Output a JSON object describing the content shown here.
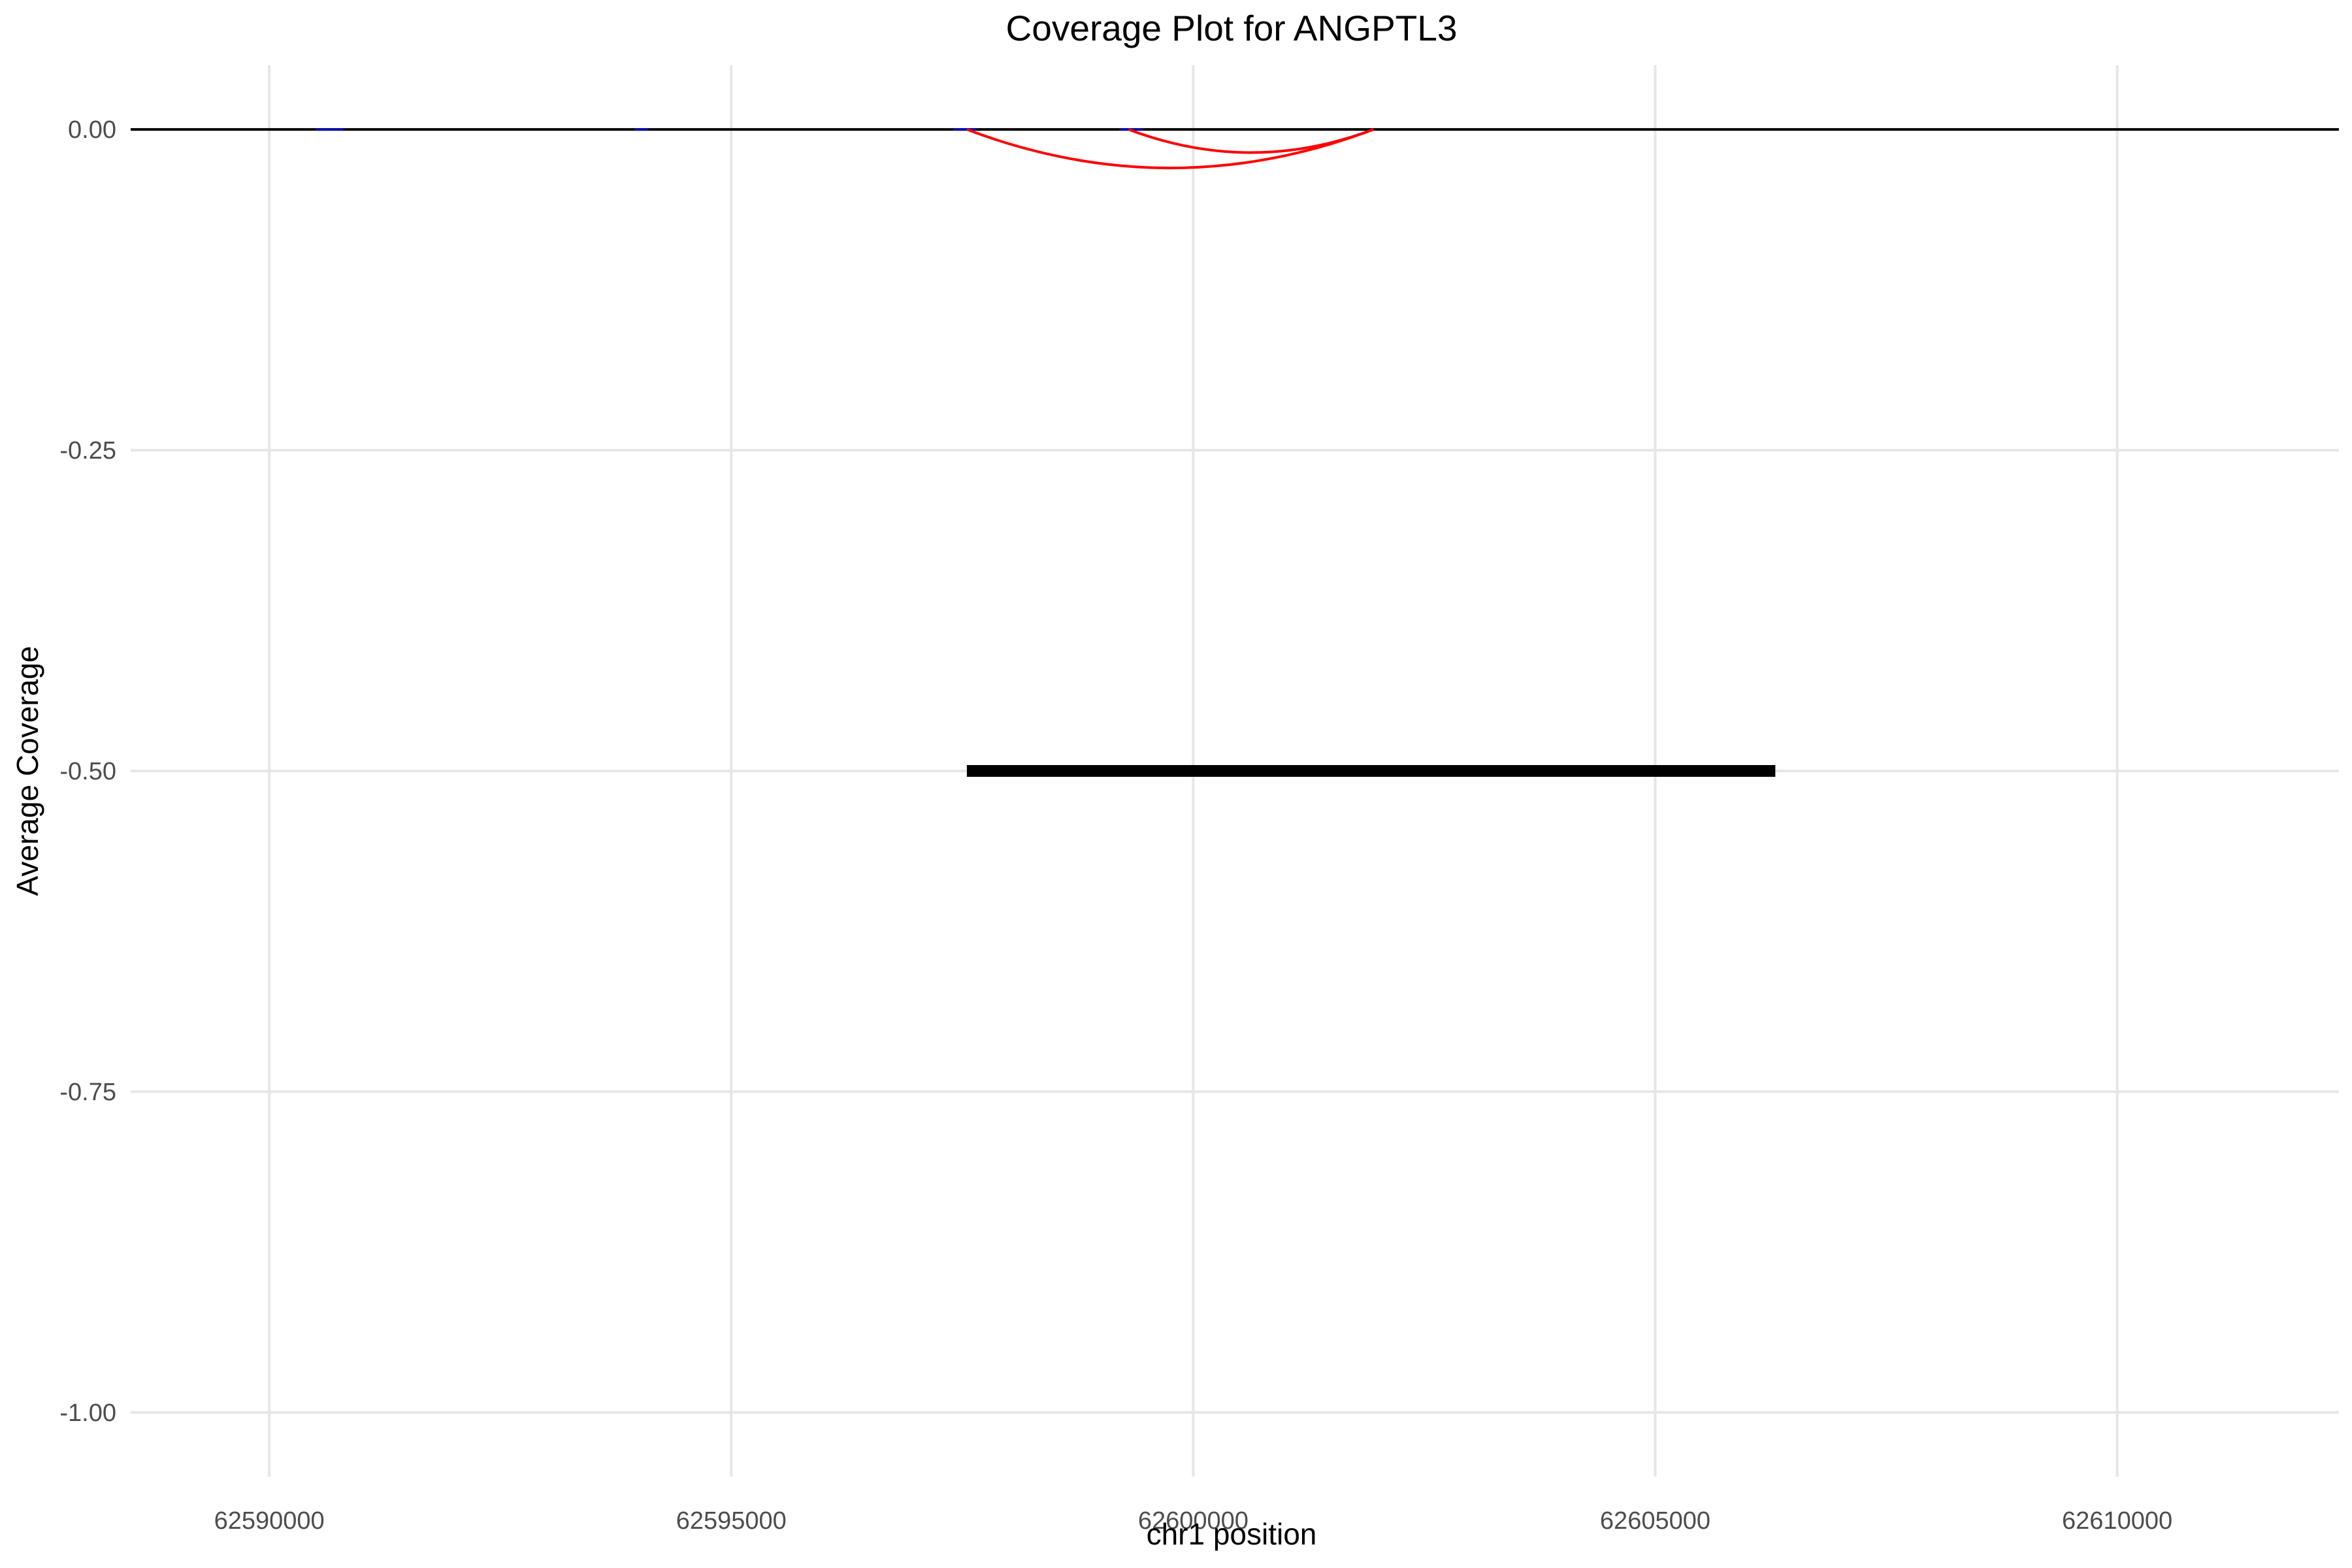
{
  "chart_data": {
    "type": "line",
    "title": "Coverage Plot for ANGPTL3",
    "xlabel": "chr1 position",
    "ylabel": "Average Coverage",
    "xlim": [
      62588500,
      62612400
    ],
    "ylim": [
      -1.05,
      0.05
    ],
    "x_ticks": [
      62590000,
      62595000,
      62600000,
      62605000,
      62610000
    ],
    "x_tick_labels": [
      "62590000",
      "62595000",
      "62600000",
      "62605000",
      "62610000"
    ],
    "y_ticks": [
      0.0,
      -0.25,
      -0.5,
      -0.75,
      -1.0
    ],
    "y_tick_labels": [
      "0.00",
      "-0.25",
      "-0.50",
      "-0.75",
      "-1.00"
    ],
    "grid": true,
    "legend": "none",
    "colors": {
      "baseline": "#000000",
      "junction": "#ff0000",
      "exon": "#0000ff",
      "gene": "#000000",
      "grid": "#e6e6e6"
    },
    "coverage_baseline": {
      "y": 0,
      "x_range": [
        62588500,
        62612400
      ]
    },
    "exons": [
      {
        "start": 62590500,
        "end": 62590800,
        "y": 0
      },
      {
        "start": 62593950,
        "end": 62594100,
        "y": 0
      },
      {
        "start": 62597400,
        "end": 62597650,
        "y": 0
      },
      {
        "start": 62599200,
        "end": 62599450,
        "y": 0
      }
    ],
    "junctions": [
      {
        "start": 62597550,
        "end": 62601950,
        "depth": -0.03
      },
      {
        "start": 62599300,
        "end": 62601950,
        "depth": -0.018
      }
    ],
    "gene_body": {
      "start": 62597550,
      "end": 62606300,
      "y": -0.5
    }
  }
}
